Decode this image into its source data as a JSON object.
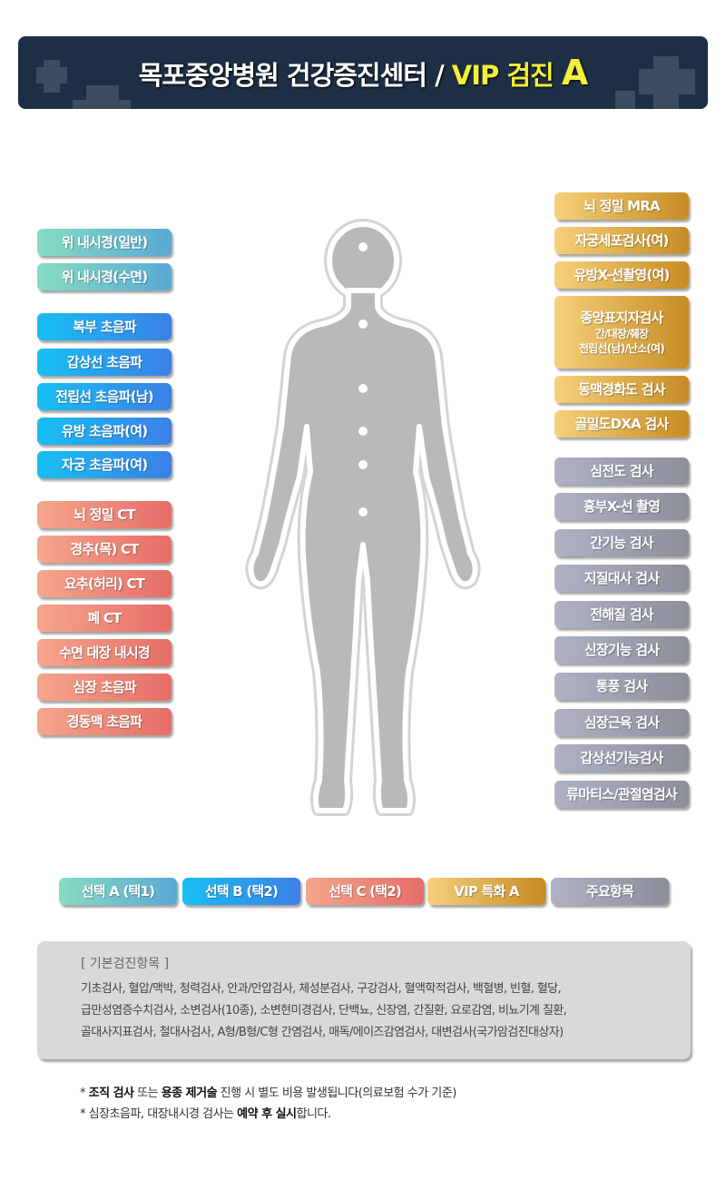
{
  "header": {
    "title_main": "목포중앙병원 건강증진센터 /",
    "title_vip": "VIP 검진",
    "title_grade": "A"
  },
  "left_items": [
    {
      "label": "위 내시경(일반)",
      "group": "teal"
    },
    {
      "label": "위 내시경(수면)",
      "group": "teal"
    },
    {
      "label": "복부 초음파",
      "group": "blue"
    },
    {
      "label": "갑상선 초음파",
      "group": "blue"
    },
    {
      "label": "전립선 초음파(남)",
      "group": "blue"
    },
    {
      "label": "유방 초음파(여)",
      "group": "blue"
    },
    {
      "label": "자궁 초음파(여)",
      "group": "blue"
    },
    {
      "label": "뇌 정밀 CT",
      "group": "salmon"
    },
    {
      "label": "경추(목) CT",
      "group": "salmon"
    },
    {
      "label": "요추(허리) CT",
      "group": "salmon"
    },
    {
      "label": "폐 CT",
      "group": "salmon"
    },
    {
      "label": "수면 대장 내시경",
      "group": "salmon"
    },
    {
      "label": "심장 초음파",
      "group": "salmon"
    },
    {
      "label": "경동맥 초음파",
      "group": "salmon"
    }
  ],
  "right_items": [
    {
      "label": "뇌 정밀 MRA",
      "group": "gold"
    },
    {
      "label": "자궁세포검사(여)",
      "group": "gold"
    },
    {
      "label": "유방X-선촬영(여)",
      "group": "gold"
    },
    {
      "label": "종양표지자검사",
      "sub1": "간/대장/췌장",
      "sub2": "전립선(남)/난소(여)",
      "group": "gold"
    },
    {
      "label": "동맥경화도 검사",
      "group": "gold"
    },
    {
      "label": "골밀도DXA 검사",
      "group": "gold"
    },
    {
      "label": "심전도 검사",
      "group": "gray"
    },
    {
      "label": "흉부X-선 촬영",
      "group": "gray"
    },
    {
      "label": "간기능 검사",
      "group": "gray"
    },
    {
      "label": "지질대사 검사",
      "group": "gray"
    },
    {
      "label": "전해질 검사",
      "group": "gray"
    },
    {
      "label": "신장기능 검사",
      "group": "gray"
    },
    {
      "label": "통풍 검사",
      "group": "gray"
    },
    {
      "label": "심장근육 검사",
      "group": "gray"
    },
    {
      "label": "갑상선기능검사",
      "group": "gray"
    },
    {
      "label": "류마티스/관절염검사",
      "group": "gray"
    }
  ],
  "legend": [
    {
      "label": "선택 A (택1)",
      "group": "teal"
    },
    {
      "label": "선택 B (택2)",
      "group": "blue"
    },
    {
      "label": "선택 C (택2)",
      "group": "salmon"
    },
    {
      "label": "VIP 특화 A",
      "group": "gold"
    },
    {
      "label": "주요항목",
      "group": "gray"
    }
  ],
  "basic": {
    "title": "[ 기본검진항목 ]",
    "lines": [
      "기초검사, 혈압/맥박, 청력검사, 안과/안압검사, 체성분검사, 구강검사, 혈액학적검사, 백혈병, 빈혈, 혈당,",
      "급만성염증수치검사, 소변검사(10종), 소변현미경검사, 단백뇨, 신장염, 간질환, 요로감염, 비뇨기계 질환,",
      "골대사지표검사, 철대사검사, A형/B형/C형 간염검사, 매독/에이즈감염검사, 대변검사(국가암검진대상자)"
    ]
  },
  "notes": {
    "n1_star": "*",
    "n1_b1": "조직 검사",
    "n1_t1": " 또는 ",
    "n1_b2": "용종 제거술",
    "n1_t2": " 진행 시 별도 비용 발생됩니다(의료보험 수가 기준)",
    "n2_star": "*",
    "n2_t1": " 심장초음파, 대장내시경 검사는 ",
    "n2_b1": "예약 후 실시",
    "n2_t2": "합니다."
  }
}
